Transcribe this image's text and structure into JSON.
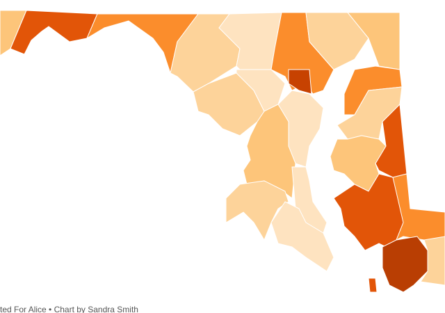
{
  "credit": "ted For Alice • Chart by Sandra Smith"
}
